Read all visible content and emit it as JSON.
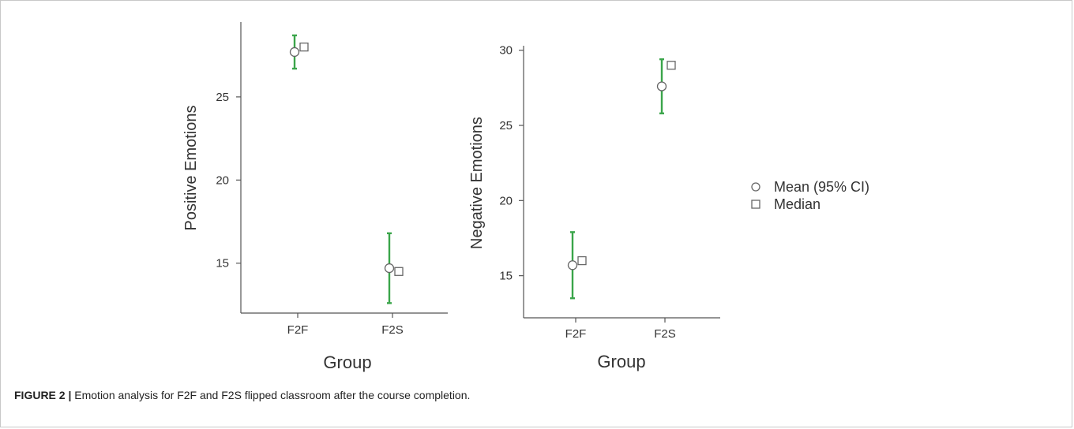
{
  "figure": {
    "label": "FIGURE 2 |",
    "caption": "Emotion analysis for F2F and F2S flipped classroom after the course completion."
  },
  "legend": {
    "mean_label": "Mean (95% CI)",
    "median_label": "Median"
  },
  "colors": {
    "ci_bar": "#3aa54a",
    "axis": "#555555",
    "marker_stroke": "#666666",
    "text": "#333333"
  },
  "chart_data": [
    {
      "type": "scatter",
      "xlabel": "Group",
      "ylabel": "Positive Emotions",
      "categories": [
        "F2F",
        "F2S"
      ],
      "ylim": [
        12,
        29.5
      ],
      "yticks": [
        15,
        20,
        25
      ],
      "grid": false,
      "series": [
        {
          "name": "Mean (95% CI)",
          "values": [
            27.7,
            14.7
          ],
          "ci_low": [
            26.7,
            12.6
          ],
          "ci_high": [
            28.7,
            16.8
          ]
        },
        {
          "name": "Median",
          "values": [
            28.0,
            14.5
          ]
        }
      ]
    },
    {
      "type": "scatter",
      "xlabel": "Group",
      "ylabel": "Negative Emotions",
      "categories": [
        "F2F",
        "F2S"
      ],
      "ylim": [
        12.2,
        30.3
      ],
      "yticks": [
        15,
        20,
        25,
        30
      ],
      "grid": false,
      "series": [
        {
          "name": "Mean (95% CI)",
          "values": [
            15.7,
            27.6
          ],
          "ci_low": [
            13.5,
            25.8
          ],
          "ci_high": [
            17.9,
            29.4
          ]
        },
        {
          "name": "Median",
          "values": [
            16.0,
            29.0
          ]
        }
      ]
    }
  ]
}
